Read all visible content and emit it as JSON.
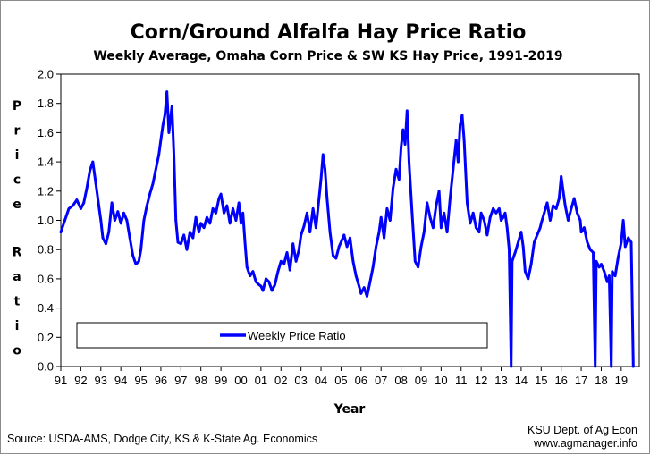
{
  "chart_data": {
    "type": "line",
    "title": "Corn/Ground Alfalfa Hay Price Ratio",
    "subtitle": "Weekly Average, Omaha Corn Price & SW KS Hay Price, 1991-2019",
    "xlabel": "Year",
    "ylabel": "Price Ratio",
    "ylim": [
      0,
      2.0
    ],
    "xlim": [
      1991,
      2019.9
    ],
    "y_ticks": [
      "0.0",
      "0.2",
      "0.4",
      "0.6",
      "0.8",
      "1.0",
      "1.2",
      "1.4",
      "1.6",
      "1.8",
      "2.0"
    ],
    "x_ticks": [
      "91",
      "92",
      "93",
      "94",
      "95",
      "96",
      "97",
      "98",
      "99",
      "00",
      "01",
      "02",
      "03",
      "04",
      "05",
      "06",
      "07",
      "08",
      "09",
      "10",
      "11",
      "12",
      "13",
      "14",
      "15",
      "16",
      "17",
      "18",
      "19"
    ],
    "grid": false,
    "legend_position": "bottom-left",
    "series": [
      {
        "name": "Weekly Price Ratio",
        "color": "#0000ff",
        "points": [
          [
            1991.0,
            0.92
          ],
          [
            1991.2,
            1.0
          ],
          [
            1991.4,
            1.08
          ],
          [
            1991.6,
            1.1
          ],
          [
            1991.8,
            1.14
          ],
          [
            1992.0,
            1.08
          ],
          [
            1992.15,
            1.12
          ],
          [
            1992.3,
            1.22
          ],
          [
            1992.45,
            1.34
          ],
          [
            1992.6,
            1.4
          ],
          [
            1992.75,
            1.25
          ],
          [
            1992.9,
            1.1
          ],
          [
            1993.0,
            1.0
          ],
          [
            1993.1,
            0.88
          ],
          [
            1993.25,
            0.84
          ],
          [
            1993.4,
            0.92
          ],
          [
            1993.55,
            1.12
          ],
          [
            1993.7,
            1.0
          ],
          [
            1993.85,
            1.06
          ],
          [
            1994.0,
            0.98
          ],
          [
            1994.15,
            1.05
          ],
          [
            1994.3,
            1.0
          ],
          [
            1994.45,
            0.88
          ],
          [
            1994.6,
            0.76
          ],
          [
            1994.75,
            0.7
          ],
          [
            1994.9,
            0.72
          ],
          [
            1995.0,
            0.8
          ],
          [
            1995.15,
            1.0
          ],
          [
            1995.3,
            1.1
          ],
          [
            1995.45,
            1.18
          ],
          [
            1995.6,
            1.25
          ],
          [
            1995.75,
            1.35
          ],
          [
            1995.9,
            1.45
          ],
          [
            1996.0,
            1.55
          ],
          [
            1996.1,
            1.65
          ],
          [
            1996.2,
            1.72
          ],
          [
            1996.3,
            1.88
          ],
          [
            1996.4,
            1.6
          ],
          [
            1996.55,
            1.78
          ],
          [
            1996.65,
            1.45
          ],
          [
            1996.75,
            1.0
          ],
          [
            1996.85,
            0.85
          ],
          [
            1997.0,
            0.84
          ],
          [
            1997.15,
            0.9
          ],
          [
            1997.3,
            0.8
          ],
          [
            1997.45,
            0.92
          ],
          [
            1997.6,
            0.88
          ],
          [
            1997.75,
            1.02
          ],
          [
            1997.9,
            0.92
          ],
          [
            1998.0,
            0.98
          ],
          [
            1998.15,
            0.95
          ],
          [
            1998.3,
            1.02
          ],
          [
            1998.45,
            0.98
          ],
          [
            1998.6,
            1.08
          ],
          [
            1998.75,
            1.05
          ],
          [
            1998.9,
            1.15
          ],
          [
            1999.0,
            1.18
          ],
          [
            1999.15,
            1.05
          ],
          [
            1999.3,
            1.1
          ],
          [
            1999.45,
            0.98
          ],
          [
            1999.6,
            1.08
          ],
          [
            1999.75,
            1.0
          ],
          [
            1999.9,
            1.12
          ],
          [
            2000.0,
            0.98
          ],
          [
            2000.1,
            1.05
          ],
          [
            2000.2,
            0.85
          ],
          [
            2000.3,
            0.68
          ],
          [
            2000.45,
            0.62
          ],
          [
            2000.6,
            0.65
          ],
          [
            2000.75,
            0.58
          ],
          [
            2000.9,
            0.56
          ],
          [
            2001.0,
            0.55
          ],
          [
            2001.1,
            0.52
          ],
          [
            2001.25,
            0.6
          ],
          [
            2001.4,
            0.58
          ],
          [
            2001.55,
            0.52
          ],
          [
            2001.7,
            0.56
          ],
          [
            2001.85,
            0.65
          ],
          [
            2002.0,
            0.72
          ],
          [
            2002.15,
            0.7
          ],
          [
            2002.3,
            0.78
          ],
          [
            2002.45,
            0.66
          ],
          [
            2002.6,
            0.84
          ],
          [
            2002.75,
            0.72
          ],
          [
            2002.9,
            0.8
          ],
          [
            2003.0,
            0.9
          ],
          [
            2003.15,
            0.96
          ],
          [
            2003.3,
            1.05
          ],
          [
            2003.45,
            0.92
          ],
          [
            2003.6,
            1.08
          ],
          [
            2003.75,
            0.95
          ],
          [
            2003.9,
            1.15
          ],
          [
            2004.0,
            1.28
          ],
          [
            2004.1,
            1.45
          ],
          [
            2004.2,
            1.35
          ],
          [
            2004.3,
            1.15
          ],
          [
            2004.45,
            0.92
          ],
          [
            2004.6,
            0.76
          ],
          [
            2004.75,
            0.74
          ],
          [
            2004.9,
            0.82
          ],
          [
            2005.0,
            0.85
          ],
          [
            2005.15,
            0.9
          ],
          [
            2005.3,
            0.82
          ],
          [
            2005.45,
            0.88
          ],
          [
            2005.6,
            0.72
          ],
          [
            2005.75,
            0.62
          ],
          [
            2005.9,
            0.55
          ],
          [
            2006.0,
            0.5
          ],
          [
            2006.15,
            0.54
          ],
          [
            2006.3,
            0.48
          ],
          [
            2006.45,
            0.58
          ],
          [
            2006.6,
            0.68
          ],
          [
            2006.75,
            0.82
          ],
          [
            2006.9,
            0.92
          ],
          [
            2007.0,
            1.02
          ],
          [
            2007.15,
            0.88
          ],
          [
            2007.3,
            1.08
          ],
          [
            2007.45,
            1.0
          ],
          [
            2007.6,
            1.22
          ],
          [
            2007.75,
            1.35
          ],
          [
            2007.9,
            1.28
          ],
          [
            2008.0,
            1.5
          ],
          [
            2008.1,
            1.62
          ],
          [
            2008.2,
            1.52
          ],
          [
            2008.3,
            1.75
          ],
          [
            2008.4,
            1.4
          ],
          [
            2008.55,
            1.05
          ],
          [
            2008.7,
            0.72
          ],
          [
            2008.85,
            0.68
          ],
          [
            2009.0,
            0.82
          ],
          [
            2009.15,
            0.92
          ],
          [
            2009.3,
            1.12
          ],
          [
            2009.45,
            1.02
          ],
          [
            2009.6,
            0.95
          ],
          [
            2009.75,
            1.1
          ],
          [
            2009.9,
            1.2
          ],
          [
            2010.0,
            0.95
          ],
          [
            2010.15,
            1.05
          ],
          [
            2010.3,
            0.92
          ],
          [
            2010.45,
            1.15
          ],
          [
            2010.6,
            1.35
          ],
          [
            2010.75,
            1.55
          ],
          [
            2010.85,
            1.4
          ],
          [
            2010.95,
            1.65
          ],
          [
            2011.05,
            1.72
          ],
          [
            2011.15,
            1.55
          ],
          [
            2011.3,
            1.12
          ],
          [
            2011.45,
            0.98
          ],
          [
            2011.6,
            1.05
          ],
          [
            2011.75,
            0.95
          ],
          [
            2011.9,
            0.92
          ],
          [
            2012.0,
            1.05
          ],
          [
            2012.15,
            1.0
          ],
          [
            2012.3,
            0.9
          ],
          [
            2012.45,
            1.02
          ],
          [
            2012.6,
            1.08
          ],
          [
            2012.75,
            1.05
          ],
          [
            2012.9,
            1.08
          ],
          [
            2013.0,
            1.0
          ],
          [
            2013.1,
            1.02
          ],
          [
            2013.2,
            1.05
          ],
          [
            2013.3,
            0.95
          ],
          [
            2013.4,
            0.8
          ],
          [
            2013.5,
            0.0
          ],
          [
            2013.55,
            0.72
          ],
          [
            2013.7,
            0.78
          ],
          [
            2013.85,
            0.85
          ],
          [
            2014.0,
            0.92
          ],
          [
            2014.1,
            0.82
          ],
          [
            2014.2,
            0.65
          ],
          [
            2014.35,
            0.6
          ],
          [
            2014.5,
            0.7
          ],
          [
            2014.65,
            0.85
          ],
          [
            2014.8,
            0.9
          ],
          [
            2014.95,
            0.95
          ],
          [
            2015.0,
            0.98
          ],
          [
            2015.15,
            1.05
          ],
          [
            2015.3,
            1.12
          ],
          [
            2015.45,
            1.0
          ],
          [
            2015.6,
            1.1
          ],
          [
            2015.75,
            1.08
          ],
          [
            2015.9,
            1.15
          ],
          [
            2016.0,
            1.3
          ],
          [
            2016.1,
            1.2
          ],
          [
            2016.2,
            1.1
          ],
          [
            2016.35,
            1.0
          ],
          [
            2016.5,
            1.08
          ],
          [
            2016.65,
            1.15
          ],
          [
            2016.8,
            1.05
          ],
          [
            2016.95,
            1.0
          ],
          [
            2017.0,
            0.92
          ],
          [
            2017.15,
            0.95
          ],
          [
            2017.3,
            0.85
          ],
          [
            2017.45,
            0.8
          ],
          [
            2017.6,
            0.78
          ],
          [
            2017.7,
            0.0
          ],
          [
            2017.75,
            0.72
          ],
          [
            2017.9,
            0.68
          ],
          [
            2018.0,
            0.7
          ],
          [
            2018.15,
            0.65
          ],
          [
            2018.3,
            0.58
          ],
          [
            2018.4,
            0.62
          ],
          [
            2018.5,
            0.0
          ],
          [
            2018.55,
            0.65
          ],
          [
            2018.7,
            0.62
          ],
          [
            2018.85,
            0.75
          ],
          [
            2019.0,
            0.85
          ],
          [
            2019.1,
            1.0
          ],
          [
            2019.2,
            0.82
          ],
          [
            2019.35,
            0.88
          ],
          [
            2019.5,
            0.85
          ],
          [
            2019.6,
            0.0
          ]
        ]
      }
    ]
  },
  "footer": {
    "source": "Source: USDA-AMS, Dodge City, KS & K-State Ag. Economics",
    "credit_line1": "KSU Dept. of Ag Econ",
    "credit_line2": "www.agmanager.info"
  }
}
